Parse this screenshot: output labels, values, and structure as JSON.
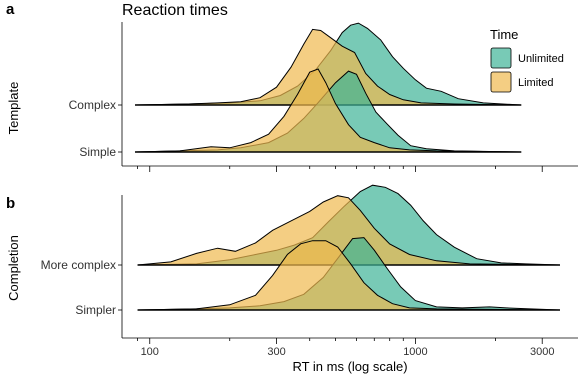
{
  "chart_data": {
    "type": "ridgeline density",
    "title": "Reaction times",
    "xlabel": "RT in ms (log scale)",
    "x_scale": "log10",
    "xlim": [
      85,
      3500
    ],
    "x_ticks": [
      100,
      300,
      1000,
      3000
    ],
    "x_tick_labels": [
      "100",
      "300",
      "1000",
      "3000"
    ],
    "legend": {
      "title": "Time",
      "placement": "top-right",
      "entries": [
        {
          "label": "Unlimited",
          "color": "#3fb397"
        },
        {
          "label": "Limited",
          "color": "#f0b94e"
        }
      ]
    },
    "series_colors": {
      "unlimited": "#3fb397",
      "limited": "#f0b94e"
    },
    "panels": [
      {
        "letter": "a",
        "ylabel": "Template",
        "rows": [
          {
            "label": "Simple",
            "range": [
              88,
              2500
            ],
            "limited": [
              [
                88,
                0
              ],
              [
                130,
                0.01
              ],
              [
                170,
                0.05
              ],
              [
                200,
                0.04
              ],
              [
                240,
                0.09
              ],
              [
                280,
                0.17
              ],
              [
                320,
                0.34
              ],
              [
                360,
                0.55
              ],
              [
                400,
                0.76
              ],
              [
                430,
                0.79
              ],
              [
                460,
                0.66
              ],
              [
                500,
                0.46
              ],
              [
                560,
                0.26
              ],
              [
                620,
                0.14
              ],
              [
                700,
                0.09
              ],
              [
                800,
                0.04
              ],
              [
                950,
                0.02
              ],
              [
                1200,
                0.01
              ],
              [
                1800,
                0.005
              ],
              [
                2500,
                0
              ]
            ],
            "unlimited": [
              [
                88,
                0
              ],
              [
                130,
                0.01
              ],
              [
                180,
                0.02
              ],
              [
                220,
                0.04
              ],
              [
                280,
                0.09
              ],
              [
                330,
                0.18
              ],
              [
                380,
                0.32
              ],
              [
                430,
                0.47
              ],
              [
                500,
                0.66
              ],
              [
                560,
                0.77
              ],
              [
                600,
                0.74
              ],
              [
                650,
                0.56
              ],
              [
                710,
                0.38
              ],
              [
                780,
                0.27
              ],
              [
                860,
                0.16
              ],
              [
                960,
                0.06
              ],
              [
                1100,
                0.03
              ],
              [
                1400,
                0.01
              ],
              [
                1900,
                0.005
              ],
              [
                2500,
                0
              ]
            ]
          },
          {
            "label": "Complex",
            "range": [
              88,
              2500
            ],
            "limited": [
              [
                88,
                0
              ],
              [
                140,
                0.01
              ],
              [
                180,
                0.02
              ],
              [
                220,
                0.03
              ],
              [
                260,
                0.07
              ],
              [
                300,
                0.17
              ],
              [
                340,
                0.36
              ],
              [
                380,
                0.58
              ],
              [
                410,
                0.72
              ],
              [
                440,
                0.71
              ],
              [
                480,
                0.64
              ],
              [
                530,
                0.56
              ],
              [
                590,
                0.5
              ],
              [
                650,
                0.3
              ],
              [
                720,
                0.18
              ],
              [
                800,
                0.1
              ],
              [
                900,
                0.05
              ],
              [
                1050,
                0.02
              ],
              [
                1400,
                0.01
              ],
              [
                2500,
                0
              ]
            ],
            "unlimited": [
              [
                88,
                0
              ],
              [
                140,
                0.01
              ],
              [
                200,
                0.02
              ],
              [
                260,
                0.04
              ],
              [
                310,
                0.09
              ],
              [
                360,
                0.18
              ],
              [
                420,
                0.33
              ],
              [
                480,
                0.52
              ],
              [
                530,
                0.69
              ],
              [
                570,
                0.76
              ],
              [
                610,
                0.78
              ],
              [
                660,
                0.73
              ],
              [
                740,
                0.62
              ],
              [
                820,
                0.46
              ],
              [
                900,
                0.35
              ],
              [
                1000,
                0.24
              ],
              [
                1100,
                0.16
              ],
              [
                1250,
                0.13
              ],
              [
                1450,
                0.06
              ],
              [
                1800,
                0.02
              ],
              [
                2500,
                0
              ]
            ]
          }
        ]
      },
      {
        "letter": "b",
        "ylabel": "Completion",
        "rows": [
          {
            "label": "Simpler",
            "range": [
              90,
              3500
            ],
            "limited": [
              [
                90,
                0
              ],
              [
                150,
                0.01
              ],
              [
                200,
                0.05
              ],
              [
                250,
                0.14
              ],
              [
                290,
                0.33
              ],
              [
                330,
                0.53
              ],
              [
                370,
                0.63
              ],
              [
                410,
                0.66
              ],
              [
                460,
                0.66
              ],
              [
                510,
                0.6
              ],
              [
                570,
                0.44
              ],
              [
                640,
                0.26
              ],
              [
                720,
                0.14
              ],
              [
                820,
                0.06
              ],
              [
                950,
                0.02
              ],
              [
                1200,
                0.01
              ],
              [
                3500,
                0
              ]
            ],
            "unlimited": [
              [
                90,
                0
              ],
              [
                150,
                0.01
              ],
              [
                200,
                0.02
              ],
              [
                260,
                0.04
              ],
              [
                320,
                0.08
              ],
              [
                380,
                0.15
              ],
              [
                450,
                0.31
              ],
              [
                520,
                0.52
              ],
              [
                580,
                0.68
              ],
              [
                640,
                0.69
              ],
              [
                700,
                0.57
              ],
              [
                780,
                0.4
              ],
              [
                880,
                0.22
              ],
              [
                1000,
                0.09
              ],
              [
                1200,
                0.03
              ],
              [
                1500,
                0.02
              ],
              [
                1900,
                0.03
              ],
              [
                2200,
                0.02
              ],
              [
                2700,
                0.01
              ],
              [
                3500,
                0
              ]
            ]
          },
          {
            "label": "More complex",
            "range": [
              90,
              3500
            ],
            "limited": [
              [
                90,
                0
              ],
              [
                120,
                0.03
              ],
              [
                150,
                0.11
              ],
              [
                180,
                0.16
              ],
              [
                210,
                0.13
              ],
              [
                250,
                0.21
              ],
              [
                290,
                0.33
              ],
              [
                340,
                0.42
              ],
              [
                400,
                0.51
              ],
              [
                450,
                0.6
              ],
              [
                510,
                0.66
              ],
              [
                560,
                0.64
              ],
              [
                620,
                0.52
              ],
              [
                700,
                0.35
              ],
              [
                800,
                0.2
              ],
              [
                950,
                0.1
              ],
              [
                1200,
                0.04
              ],
              [
                1600,
                0.01
              ],
              [
                3500,
                0
              ]
            ],
            "unlimited": [
              [
                90,
                0
              ],
              [
                150,
                0.01
              ],
              [
                200,
                0.05
              ],
              [
                250,
                0.1
              ],
              [
                300,
                0.14
              ],
              [
                350,
                0.19
              ],
              [
                410,
                0.26
              ],
              [
                470,
                0.41
              ],
              [
                540,
                0.56
              ],
              [
                620,
                0.7
              ],
              [
                690,
                0.76
              ],
              [
                770,
                0.74
              ],
              [
                860,
                0.68
              ],
              [
                960,
                0.57
              ],
              [
                1070,
                0.42
              ],
              [
                1200,
                0.29
              ],
              [
                1400,
                0.17
              ],
              [
                1700,
                0.06
              ],
              [
                2100,
                0.02
              ],
              [
                2600,
                0.01
              ],
              [
                3500,
                0
              ]
            ]
          }
        ]
      }
    ]
  }
}
